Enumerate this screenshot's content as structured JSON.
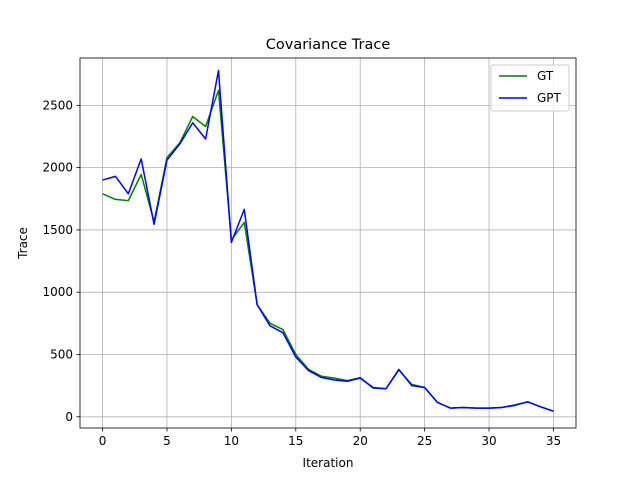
{
  "chart_data": {
    "type": "line",
    "title": "Covariance Trace",
    "xlabel": "Iteration",
    "ylabel": "Trace",
    "xlim": [
      -1.75,
      36.75
    ],
    "ylim": [
      -90,
      2880
    ],
    "xticks": [
      0,
      5,
      10,
      15,
      20,
      25,
      30,
      35
    ],
    "yticks": [
      0,
      500,
      1000,
      1500,
      2000,
      2500
    ],
    "grid": true,
    "legend": "top-right",
    "x": [
      0,
      1,
      2,
      3,
      4,
      5,
      6,
      7,
      8,
      9,
      10,
      11,
      12,
      13,
      14,
      15,
      16,
      17,
      18,
      19,
      20,
      21,
      22,
      23,
      24,
      25,
      26,
      27,
      28,
      29,
      30,
      31,
      32,
      33,
      34,
      35
    ],
    "series": [
      {
        "name": "GT",
        "color": "#008000",
        "values": [
          1790,
          1745,
          1735,
          1945,
          1565,
          2080,
          2200,
          2410,
          2330,
          2620,
          1420,
          1560,
          900,
          750,
          700,
          500,
          380,
          325,
          310,
          290,
          315,
          230,
          225,
          375,
          260,
          235,
          115,
          70,
          75,
          70,
          70,
          75,
          90,
          120,
          80,
          45
        ]
      },
      {
        "name": "GPT",
        "color": "#0000ff",
        "values": [
          1900,
          1930,
          1790,
          2070,
          1545,
          2060,
          2190,
          2360,
          2230,
          2780,
          1400,
          1665,
          900,
          730,
          675,
          480,
          370,
          315,
          295,
          285,
          310,
          235,
          225,
          380,
          250,
          235,
          115,
          70,
          75,
          70,
          70,
          75,
          95,
          120,
          80,
          45
        ]
      }
    ]
  }
}
